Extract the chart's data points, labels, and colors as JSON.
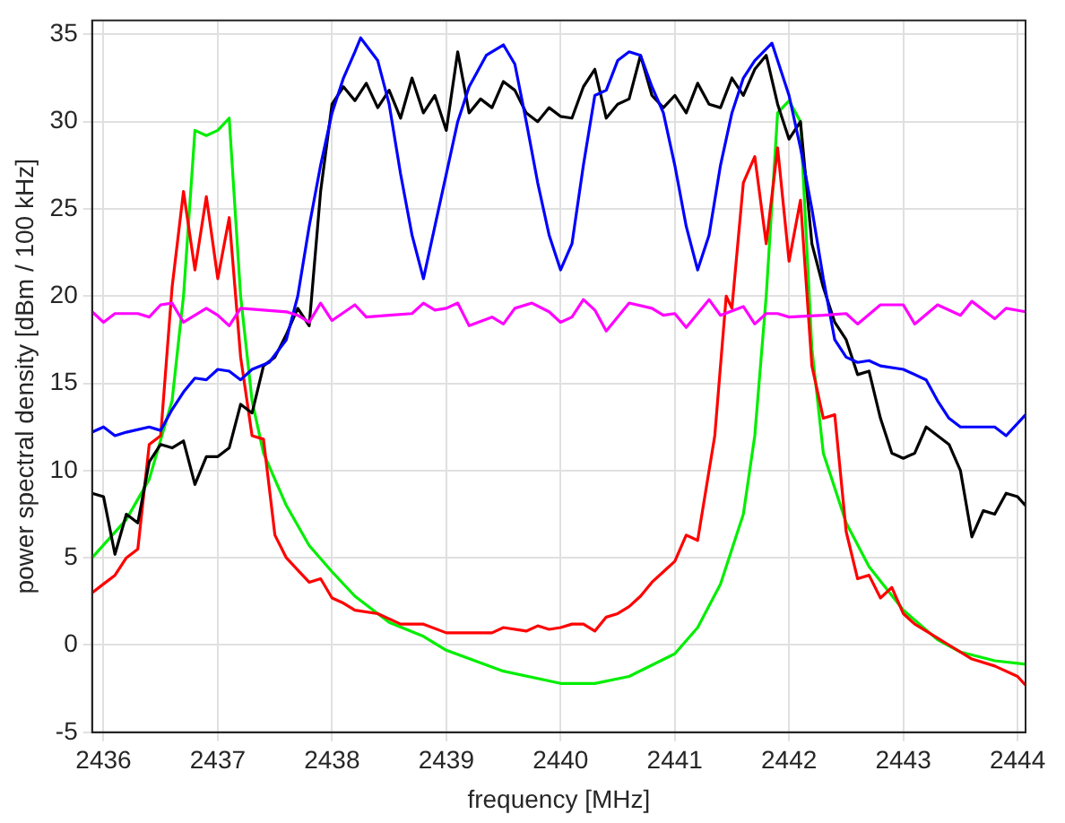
{
  "chart_data": {
    "type": "line",
    "xlabel": "frequency [MHz]",
    "ylabel": "power spectral density [dBm / 100 kHz]",
    "xlim": [
      2435.9,
      2444.07
    ],
    "ylim": [
      -5,
      35.8
    ],
    "xticks": [
      2436,
      2437,
      2438,
      2439,
      2440,
      2441,
      2442,
      2443,
      2444
    ],
    "yticks": [
      -5,
      0,
      5,
      10,
      15,
      20,
      25,
      30,
      35
    ],
    "grid": true,
    "legend": false,
    "marker": "none",
    "line_style": "solid",
    "series": [
      {
        "color": "#ff00ff",
        "x": [
          2435.9,
          2436,
          2436.1,
          2436.3,
          2436.4,
          2436.5,
          2436.6,
          2436.7,
          2436.9,
          2437,
          2437.1,
          2437.2,
          2437.4,
          2437.6,
          2437.7,
          2437.8,
          2437.9,
          2438,
          2438.2,
          2438.3,
          2438.5,
          2438.7,
          2438.8,
          2438.9,
          2439,
          2439.1,
          2439.2,
          2439.4,
          2439.5,
          2439.6,
          2439.75,
          2439.9,
          2440,
          2440.1,
          2440.2,
          2440.3,
          2440.4,
          2440.6,
          2440.8,
          2440.9,
          2441,
          2441.1,
          2441.3,
          2441.4,
          2441.6,
          2441.7,
          2441.8,
          2441.9,
          2442,
          2442.3,
          2442.5,
          2442.6,
          2442.8,
          2443,
          2443.1,
          2443.3,
          2443.5,
          2443.6,
          2443.8,
          2443.9,
          2444.07
        ],
        "values": [
          19.1,
          18.5,
          19,
          19,
          18.8,
          19.5,
          19.6,
          18.5,
          19.3,
          18.9,
          18.3,
          19.3,
          19.2,
          19.1,
          18.9,
          18.5,
          19.6,
          18.6,
          19.5,
          18.8,
          18.9,
          19,
          19.6,
          19.2,
          19.3,
          19.6,
          18.3,
          18.8,
          18.4,
          19.3,
          19.6,
          19.1,
          18.5,
          18.8,
          19.8,
          19.2,
          18,
          19.6,
          19.3,
          18.9,
          19,
          18.2,
          19.8,
          18.9,
          19.4,
          18.4,
          19,
          19,
          18.8,
          18.9,
          19,
          18.4,
          19.5,
          19.5,
          18.4,
          19.5,
          18.9,
          19.7,
          18.7,
          19.3,
          19.1
        ]
      },
      {
        "color": "#0000ff",
        "x": [
          2435.9,
          2436,
          2436.1,
          2436.2,
          2436.4,
          2436.5,
          2436.6,
          2436.7,
          2436.8,
          2436.9,
          2437,
          2437.1,
          2437.2,
          2437.3,
          2437.45,
          2437.6,
          2437.7,
          2437.8,
          2437.9,
          2438,
          2438.1,
          2438.2,
          2438.25,
          2438.4,
          2438.5,
          2438.6,
          2438.7,
          2438.8,
          2438.9,
          2439,
          2439.1,
          2439.2,
          2439.35,
          2439.5,
          2439.6,
          2439.7,
          2439.8,
          2439.9,
          2440,
          2440.1,
          2440.2,
          2440.3,
          2440.4,
          2440.5,
          2440.6,
          2440.7,
          2440.8,
          2440.9,
          2441,
          2441.1,
          2441.2,
          2441.3,
          2441.4,
          2441.5,
          2441.6,
          2441.7,
          2441.85,
          2442,
          2442.1,
          2442.2,
          2442.3,
          2442.4,
          2442.5,
          2442.6,
          2442.7,
          2442.8,
          2443,
          2443.2,
          2443.3,
          2443.4,
          2443.5,
          2443.8,
          2443.9,
          2444.07
        ],
        "values": [
          12.2,
          12.5,
          12,
          12.2,
          12.5,
          12.3,
          13.5,
          14.5,
          15.3,
          15.2,
          15.8,
          15.7,
          15.2,
          15.8,
          16.2,
          17.5,
          20,
          24,
          27.5,
          30.5,
          32.5,
          34,
          34.8,
          33.5,
          31,
          27,
          23.5,
          21,
          24,
          27,
          30,
          32,
          33.8,
          34.4,
          33.3,
          30,
          26.5,
          23.5,
          21.5,
          23,
          27.5,
          31.5,
          31.8,
          33.5,
          34,
          33.8,
          32,
          30.5,
          27.5,
          24,
          21.5,
          23.5,
          27.5,
          30.5,
          32.5,
          33.5,
          34.5,
          31.5,
          28.5,
          25,
          21,
          17.5,
          16.5,
          16.2,
          16.3,
          16,
          15.8,
          15.2,
          14,
          13,
          12.5,
          12.5,
          12,
          13.2
        ]
      },
      {
        "color": "#000000",
        "x": [
          2435.9,
          2436,
          2436.1,
          2436.2,
          2436.3,
          2436.4,
          2436.5,
          2436.6,
          2436.7,
          2436.8,
          2436.9,
          2437,
          2437.1,
          2437.2,
          2437.3,
          2437.4,
          2437.5,
          2437.6,
          2437.7,
          2437.8,
          2437.9,
          2438,
          2438.1,
          2438.2,
          2438.3,
          2438.4,
          2438.5,
          2438.6,
          2438.7,
          2438.8,
          2438.9,
          2439,
          2439.1,
          2439.2,
          2439.3,
          2439.4,
          2439.5,
          2439.6,
          2439.7,
          2439.8,
          2439.9,
          2440,
          2440.1,
          2440.2,
          2440.3,
          2440.4,
          2440.5,
          2440.6,
          2440.7,
          2440.8,
          2440.9,
          2441,
          2441.1,
          2441.2,
          2441.3,
          2441.4,
          2441.5,
          2441.6,
          2441.7,
          2441.8,
          2441.9,
          2442,
          2442.1,
          2442.2,
          2442.3,
          2442.4,
          2442.5,
          2442.6,
          2442.7,
          2442.8,
          2442.9,
          2443,
          2443.1,
          2443.2,
          2443.3,
          2443.4,
          2443.5,
          2443.6,
          2443.7,
          2443.8,
          2443.9,
          2444,
          2444.07
        ],
        "values": [
          8.7,
          8.5,
          5.2,
          7.5,
          7,
          10.5,
          11.5,
          11.3,
          11.7,
          9.2,
          10.8,
          10.8,
          11.3,
          13.8,
          13.3,
          16,
          16.5,
          17.8,
          19.3,
          18.3,
          26,
          31,
          32,
          31.2,
          32.2,
          30.8,
          31.8,
          30.2,
          32.5,
          30.5,
          31.5,
          29.5,
          34,
          30.5,
          31.3,
          30.8,
          32.3,
          31.8,
          30.5,
          30,
          30.8,
          30.3,
          30.2,
          32,
          33,
          30.2,
          31,
          31.3,
          33.8,
          31.5,
          30.8,
          31.5,
          30.5,
          32.2,
          31,
          30.8,
          32.5,
          31.5,
          33,
          33.8,
          31,
          29,
          30,
          23,
          20.5,
          18.5,
          17.5,
          15.5,
          15.7,
          13,
          11,
          10.7,
          11,
          12.5,
          12,
          11.5,
          10,
          6.2,
          7.7,
          7.5,
          8.7,
          8.5,
          8
        ]
      },
      {
        "color": "#ff0000",
        "x": [
          2435.9,
          2436,
          2436.1,
          2436.2,
          2436.3,
          2436.4,
          2436.5,
          2436.6,
          2436.7,
          2436.8,
          2436.9,
          2437,
          2437.1,
          2437.2,
          2437.3,
          2437.4,
          2437.5,
          2437.6,
          2437.7,
          2437.8,
          2437.9,
          2438,
          2438.1,
          2438.2,
          2438.4,
          2438.6,
          2438.8,
          2439,
          2439.2,
          2439.4,
          2439.5,
          2439.7,
          2439.8,
          2439.9,
          2440,
          2440.1,
          2440.2,
          2440.3,
          2440.4,
          2440.5,
          2440.6,
          2440.7,
          2440.8,
          2440.9,
          2441,
          2441.1,
          2441.2,
          2441.35,
          2441.45,
          2441.5,
          2441.6,
          2441.7,
          2441.8,
          2441.9,
          2442,
          2442.1,
          2442.2,
          2442.3,
          2442.4,
          2442.5,
          2442.6,
          2442.7,
          2442.8,
          2442.9,
          2443,
          2443.1,
          2443.2,
          2443.4,
          2443.6,
          2443.8,
          2444,
          2444.07
        ],
        "values": [
          3,
          3.5,
          4,
          5,
          5.5,
          11.5,
          12,
          20.5,
          26,
          21.5,
          25.7,
          21,
          24.5,
          16.5,
          12,
          11.8,
          6.3,
          5,
          4.3,
          3.6,
          3.8,
          2.7,
          2.4,
          2,
          1.8,
          1.2,
          1.2,
          0.7,
          0.7,
          0.7,
          1,
          0.8,
          1.1,
          0.9,
          1,
          1.2,
          1.2,
          0.8,
          1.6,
          1.8,
          2.2,
          2.8,
          3.6,
          4.2,
          4.8,
          6.3,
          6,
          12,
          20,
          19.3,
          26.5,
          28,
          23,
          28.5,
          22,
          25.5,
          16,
          13,
          13.2,
          6.5,
          3.8,
          4,
          2.7,
          3.3,
          1.8,
          1.2,
          0.8,
          0,
          -0.8,
          -1.2,
          -1.8,
          -2.3
        ]
      },
      {
        "color": "#00ee00",
        "x": [
          2435.9,
          2436.2,
          2436.4,
          2436.6,
          2436.7,
          2436.8,
          2436.9,
          2437,
          2437.1,
          2437.2,
          2437.3,
          2437.4,
          2437.6,
          2437.8,
          2438,
          2438.2,
          2438.5,
          2438.8,
          2439,
          2439.5,
          2440,
          2440.3,
          2440.6,
          2441,
          2441.2,
          2441.4,
          2441.6,
          2441.7,
          2441.8,
          2441.9,
          2442,
          2442.1,
          2442.2,
          2442.3,
          2442.5,
          2442.7,
          2443,
          2443.3,
          2443.5,
          2443.8,
          2444.07
        ],
        "values": [
          5,
          7.2,
          9.5,
          14,
          20,
          29.5,
          29.2,
          29.5,
          30.2,
          20,
          14,
          11,
          8,
          5.7,
          4.2,
          2.8,
          1.3,
          0.5,
          -0.3,
          -1.5,
          -2.2,
          -2.2,
          -1.8,
          -0.5,
          1,
          3.5,
          7.5,
          12,
          20,
          30.5,
          31.2,
          30,
          17,
          11,
          7,
          4.5,
          2,
          0.3,
          -0.4,
          -0.9,
          -1.1
        ]
      }
    ]
  }
}
